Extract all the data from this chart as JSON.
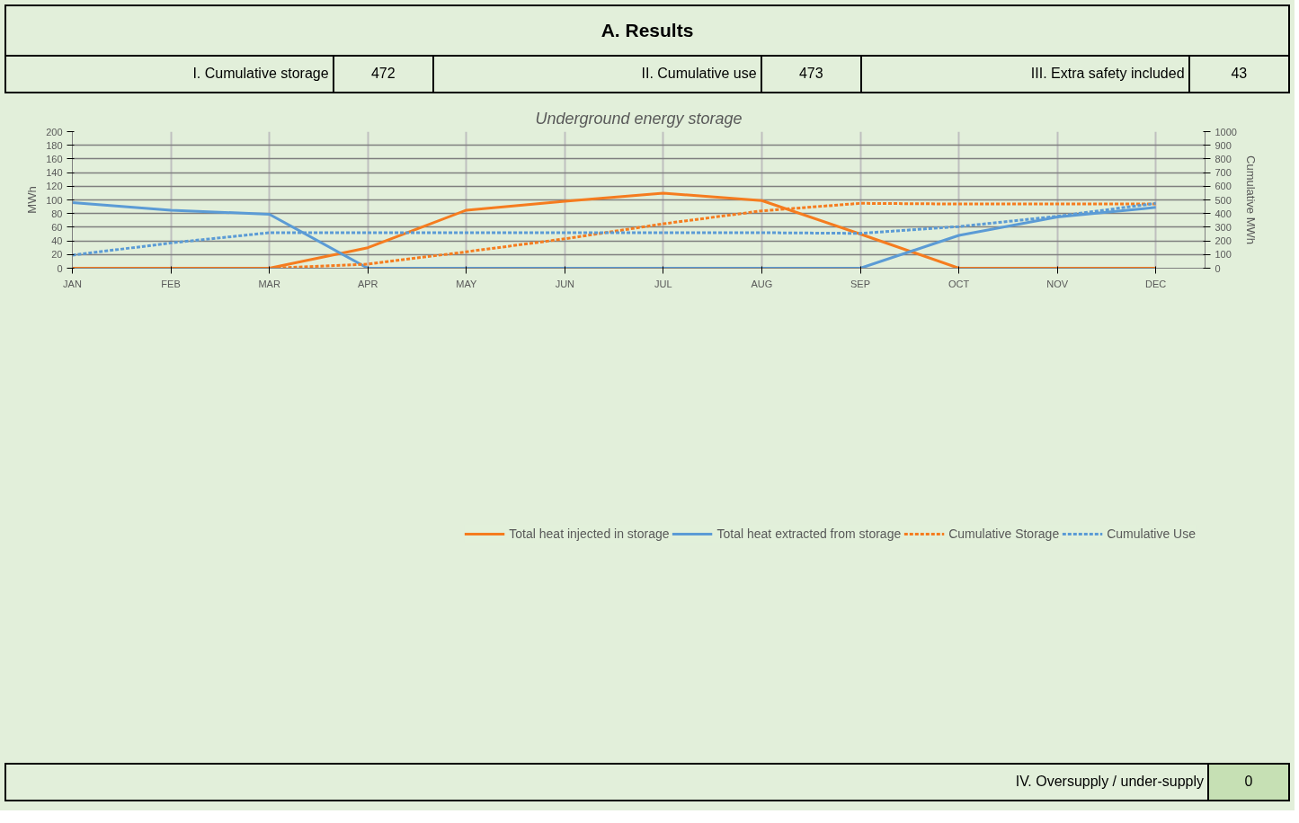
{
  "chart_data": {
    "type": "line",
    "title": "Underground energy storage",
    "categories": [
      "JAN",
      "FEB",
      "MAR",
      "APR",
      "MAY",
      "JUN",
      "JUL",
      "AUG",
      "SEP",
      "OCT",
      "NOV",
      "DEC"
    ],
    "series": [
      {
        "name": "Total heat injected in storage",
        "color": "#f57c1f",
        "line_style": "solid",
        "values": [
          0,
          0,
          0,
          30,
          85,
          98,
          110,
          99,
          50,
          0,
          0,
          0
        ]
      },
      {
        "name": "Total heat extracted from storage",
        "color": "#5b9bd5",
        "line_style": "solid",
        "values": [
          96,
          85,
          79,
          0,
          0,
          0,
          0,
          0,
          0,
          48,
          75,
          89
        ]
      },
      {
        "name": "Cumulative Storage",
        "color": "#f57c1f",
        "line_style": "dashed",
        "axis": "y2",
        "values": [
          0,
          0,
          0,
          30,
          120,
          215,
          325,
          420,
          475,
          470,
          470,
          470
        ]
      },
      {
        "name": "Cumulative Use",
        "color": "#5b9bd5",
        "line_style": "dashed",
        "axis": "y2",
        "values": [
          95,
          185,
          260,
          260,
          260,
          260,
          260,
          260,
          255,
          305,
          380,
          475
        ]
      }
    ],
    "ylabel": "MWh",
    "y2label": "Cumulative MWh",
    "ylim": [
      0,
      200
    ],
    "yticks": [
      0,
      20,
      40,
      60,
      80,
      100,
      120,
      140,
      160,
      180,
      200
    ],
    "y2lim": [
      0,
      1000
    ],
    "y2ticks": [
      0,
      100,
      200,
      300,
      400,
      500,
      600,
      700,
      800,
      900,
      1000
    ],
    "grid": true,
    "legend": "bottom",
    "marker": "none",
    "annotations": [
      "A. Results",
      "I. Cumulative storage",
      "472",
      "II. Cumulative use",
      "473",
      "III. Extra safety included",
      "43",
      "IV. Oversupply / under-supply",
      "0"
    ]
  }
}
